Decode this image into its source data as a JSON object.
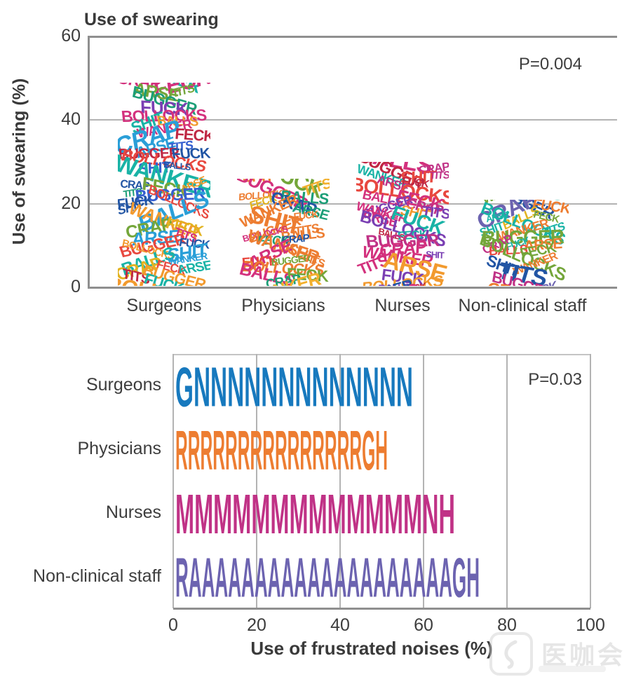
{
  "figure": {
    "background": "#ffffff"
  },
  "watermark": {
    "text": "医咖会",
    "icon": "yikahui-logo-icon"
  },
  "chart_data": [
    {
      "type": "bar",
      "title": "Use of swearing",
      "ylabel": "Use of swearing (%)",
      "xlabel": "",
      "categories": [
        "Surgeons",
        "Physicians",
        "Nurses",
        "Non-clinical staff"
      ],
      "values": [
        49,
        26,
        30,
        21
      ],
      "ylim": [
        0,
        60
      ],
      "yticks": [
        0,
        20,
        40,
        60
      ],
      "annotation": "P=0.004",
      "grid": "horizontal",
      "bar_fill": "hand-drawn overlapping swear words",
      "bar_words": [
        [
          "FUCK",
          "BOLLOCKS",
          "SHIT",
          "BALLS",
          "WANKER",
          "CRAP",
          "FECK",
          "ARSE",
          "TITS",
          "BUGGER"
        ],
        [
          "TITS",
          "BOLLOCKS",
          "BALLS",
          "FECK",
          "CRAP",
          "WANKER",
          "ARSE",
          "SHIT",
          "FUCK",
          "BUGGER"
        ],
        [
          "BUGGER",
          "CRAP",
          "WANKER",
          "SHIT",
          "TITS",
          "ARSE",
          "FUCK",
          "BOLLOCKS",
          "BALLS",
          "FECK"
        ],
        [
          "ARSE",
          "BALLS",
          "FECK",
          "BOLLOCKS",
          "SHIT",
          "WANKER",
          "TITS",
          "BUGGER",
          "CRAP",
          "FUCK"
        ]
      ],
      "word_palettes": [
        [
          "#e8483f",
          "#2255a4",
          "#f29a2e",
          "#1c9e77",
          "#7a3fb3",
          "#d3317d",
          "#2a9fd8",
          "#74a63a",
          "#e2b320",
          "#bf2743",
          "#355fd0",
          "#19b3a6"
        ],
        [
          "#ed7d31",
          "#e8483f",
          "#74a63a",
          "#1c9e77",
          "#2255a4",
          "#d3317d",
          "#f2b02e",
          "#ed7d31",
          "#e2b320",
          "#ed7d31"
        ],
        [
          "#d3317d",
          "#e8483f",
          "#7a3fb3",
          "#19b3a6",
          "#c03286",
          "#f29a2e",
          "#2255a4",
          "#d3317d",
          "#bf2743"
        ],
        [
          "#e8483f",
          "#2255a4",
          "#c03286",
          "#19b3a6",
          "#ed7d31",
          "#6c63b0",
          "#74a63a",
          "#e2b320"
        ]
      ]
    },
    {
      "type": "bar",
      "orientation": "horizontal",
      "title": "",
      "xlabel": "Use of frustrated noises (%)",
      "categories": [
        "Surgeons",
        "Physicians",
        "Nurses",
        "Non-clinical staff"
      ],
      "values": [
        58,
        52,
        68,
        74
      ],
      "bar_text": [
        "GNNNNNNNNNNNNN",
        "RRRRRRRRRRRRRRRGH",
        "MMMMMMMMMMMMMNH",
        "RAAAAAAAAAAAAAAAAAAAAGH"
      ],
      "bar_colors": [
        "#1779be",
        "#ed7d31",
        "#c03286",
        "#6c63b0"
      ],
      "xlim": [
        0,
        100
      ],
      "xticks": [
        0,
        20,
        40,
        60,
        80,
        100
      ],
      "annotation": "P=0.03",
      "grid": "vertical"
    }
  ]
}
